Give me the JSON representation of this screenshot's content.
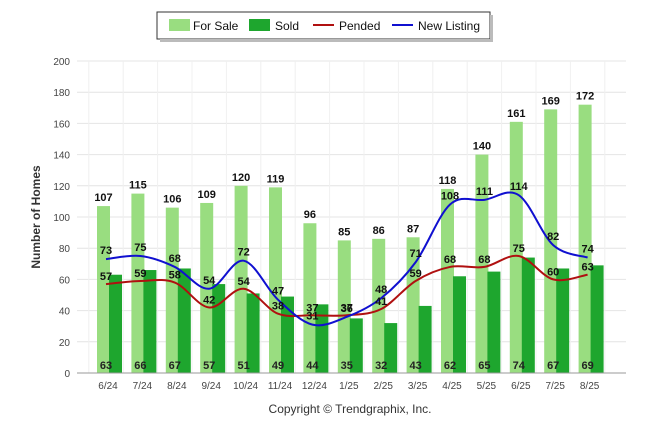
{
  "chart_data": {
    "type": "bar",
    "categories": [
      "6/24",
      "7/24",
      "8/24",
      "9/24",
      "10/24",
      "11/24",
      "12/24",
      "1/25",
      "2/25",
      "3/25",
      "4/25",
      "5/25",
      "6/25",
      "7/25",
      "8/25"
    ],
    "series": [
      {
        "name": "For Sale",
        "type": "bar",
        "color": "#99dd80",
        "values": [
          107,
          115,
          106,
          109,
          120,
          119,
          96,
          85,
          86,
          87,
          118,
          140,
          161,
          169,
          172
        ]
      },
      {
        "name": "Sold",
        "type": "bar",
        "color": "#1ea62e",
        "values": [
          63,
          66,
          67,
          57,
          51,
          49,
          44,
          35,
          32,
          43,
          62,
          65,
          74,
          67,
          69
        ]
      },
      {
        "name": "Pended",
        "type": "line",
        "color": "#b01010",
        "values": [
          57,
          59,
          58,
          42,
          54,
          38,
          37,
          37,
          41,
          59,
          68,
          68,
          75,
          60,
          63
        ]
      },
      {
        "name": "New Listing",
        "type": "line",
        "color": "#1010d0",
        "values": [
          73,
          75,
          68,
          54,
          72,
          47,
          31,
          36,
          48,
          71,
          108,
          111,
          114,
          82,
          74
        ]
      }
    ],
    "ylabel": "Number of Homes",
    "xlabel": "",
    "ylim": [
      0,
      200
    ],
    "yticks": [
      0,
      20,
      40,
      60,
      80,
      100,
      120,
      140,
      160,
      180,
      200
    ],
    "grid": true,
    "legend_position": "top-center"
  },
  "legend": {
    "for_sale": "For Sale",
    "sold": "Sold",
    "pended": "Pended",
    "new_listing": "New Listing"
  },
  "footer": {
    "copyright": "Copyright © Trendgraphix, Inc."
  }
}
